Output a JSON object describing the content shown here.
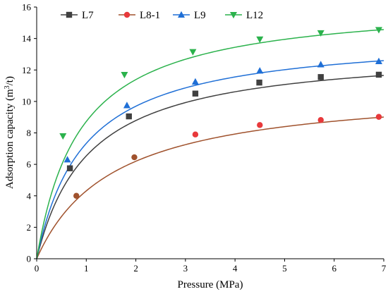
{
  "chart_data": {
    "type": "scatter",
    "xlabel": "Pressure (MPa)",
    "ylabel_main": "Adsorption capacity  (m",
    "ylabel_sup": "3",
    "ylabel_end": "/t)",
    "xlim": [
      0,
      7
    ],
    "ylim": [
      0,
      16
    ],
    "x_ticks": [
      "0",
      "1",
      "2",
      "3",
      "4",
      "5",
      "6",
      "7"
    ],
    "y_ticks": [
      "0",
      "2",
      "4",
      "6",
      "8",
      "10",
      "12",
      "14",
      "16"
    ],
    "grid": false,
    "legend_position": "top",
    "fit_model": "Langmuir curve through origin",
    "series": [
      {
        "name": "L7",
        "marker": "square",
        "color": "#404040",
        "line_color": "#404040",
        "points": [
          [
            0.67,
            5.75
          ],
          [
            1.86,
            9.05
          ],
          [
            3.2,
            10.5
          ],
          [
            4.49,
            11.2
          ],
          [
            5.73,
            11.55
          ],
          [
            6.9,
            11.7
          ]
        ],
        "fit": {
          "VL": 13.4,
          "PL": 1.05
        }
      },
      {
        "name": "L8-1",
        "marker": "circle",
        "color": "#e8393b",
        "early_color": "#a0522d",
        "line_color": "#a0522d",
        "points": [
          [
            0.8,
            4.0
          ],
          [
            1.97,
            6.45
          ],
          [
            3.2,
            7.9
          ],
          [
            4.5,
            8.5
          ],
          [
            5.73,
            8.82
          ],
          [
            6.9,
            9.02
          ]
        ],
        "fit": {
          "VL": 11.0,
          "PL": 1.55
        }
      },
      {
        "name": "L9",
        "marker": "triangle-up",
        "color": "#1f6fd6",
        "line_color": "#1f6fd6",
        "points": [
          [
            0.62,
            6.3
          ],
          [
            1.82,
            9.75
          ],
          [
            3.2,
            11.25
          ],
          [
            4.5,
            11.95
          ],
          [
            5.73,
            12.35
          ],
          [
            6.9,
            12.55
          ]
        ],
        "fit": {
          "VL": 14.3,
          "PL": 0.95
        }
      },
      {
        "name": "L12",
        "marker": "triangle-down",
        "color": "#2bb24c",
        "line_color": "#2bb24c",
        "points": [
          [
            0.53,
            7.8
          ],
          [
            1.77,
            11.7
          ],
          [
            3.15,
            13.15
          ],
          [
            4.5,
            13.95
          ],
          [
            5.73,
            14.35
          ],
          [
            6.9,
            14.55
          ]
        ],
        "fit": {
          "VL": 16.4,
          "PL": 0.88
        }
      }
    ]
  }
}
